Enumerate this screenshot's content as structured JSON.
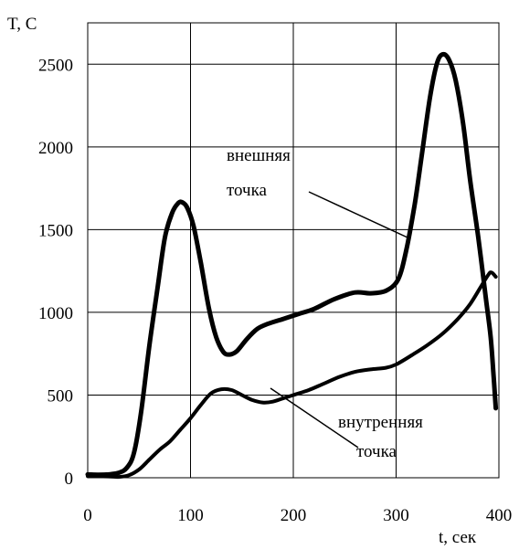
{
  "chart_data": {
    "type": "line",
    "ylabel": "T, C",
    "xlabel": "t, сек",
    "xlim": [
      0,
      400
    ],
    "ylim": [
      0,
      2750
    ],
    "grid": true,
    "x_ticks": [
      0,
      100,
      200,
      300,
      400
    ],
    "y_ticks": [
      0,
      500,
      1000,
      1500,
      2000,
      2500
    ],
    "series": [
      {
        "label_lines": [
          "внешняя",
          "точка"
        ],
        "color": "#000000",
        "points": [
          [
            0,
            20
          ],
          [
            10,
            18
          ],
          [
            20,
            20
          ],
          [
            30,
            30
          ],
          [
            38,
            60
          ],
          [
            45,
            150
          ],
          [
            52,
            400
          ],
          [
            60,
            800
          ],
          [
            68,
            1150
          ],
          [
            75,
            1450
          ],
          [
            82,
            1600
          ],
          [
            88,
            1660
          ],
          [
            92,
            1665
          ],
          [
            97,
            1630
          ],
          [
            103,
            1520
          ],
          [
            110,
            1300
          ],
          [
            118,
            1020
          ],
          [
            125,
            850
          ],
          [
            132,
            760
          ],
          [
            138,
            745
          ],
          [
            145,
            765
          ],
          [
            155,
            840
          ],
          [
            165,
            900
          ],
          [
            175,
            930
          ],
          [
            190,
            960
          ],
          [
            205,
            990
          ],
          [
            220,
            1020
          ],
          [
            240,
            1080
          ],
          [
            260,
            1120
          ],
          [
            275,
            1115
          ],
          [
            290,
            1130
          ],
          [
            302,
            1200
          ],
          [
            310,
            1380
          ],
          [
            318,
            1650
          ],
          [
            325,
            1950
          ],
          [
            333,
            2300
          ],
          [
            340,
            2510
          ],
          [
            346,
            2560
          ],
          [
            352,
            2520
          ],
          [
            358,
            2400
          ],
          [
            365,
            2150
          ],
          [
            372,
            1800
          ],
          [
            380,
            1450
          ],
          [
            387,
            1100
          ],
          [
            392,
            850
          ],
          [
            395,
            600
          ],
          [
            397,
            420
          ]
        ]
      },
      {
        "label_lines": [
          "внутренняя",
          "точка"
        ],
        "color": "#000000",
        "points": [
          [
            0,
            10
          ],
          [
            20,
            8
          ],
          [
            30,
            5
          ],
          [
            40,
            15
          ],
          [
            50,
            50
          ],
          [
            60,
            110
          ],
          [
            70,
            170
          ],
          [
            80,
            220
          ],
          [
            90,
            290
          ],
          [
            100,
            360
          ],
          [
            110,
            440
          ],
          [
            120,
            510
          ],
          [
            130,
            535
          ],
          [
            140,
            530
          ],
          [
            150,
            500
          ],
          [
            160,
            470
          ],
          [
            170,
            455
          ],
          [
            180,
            460
          ],
          [
            190,
            480
          ],
          [
            200,
            500
          ],
          [
            215,
            530
          ],
          [
            230,
            570
          ],
          [
            245,
            610
          ],
          [
            260,
            640
          ],
          [
            275,
            655
          ],
          [
            290,
            665
          ],
          [
            300,
            685
          ],
          [
            315,
            740
          ],
          [
            330,
            800
          ],
          [
            345,
            870
          ],
          [
            360,
            960
          ],
          [
            372,
            1050
          ],
          [
            382,
            1150
          ],
          [
            390,
            1230
          ],
          [
            393,
            1240
          ],
          [
            397,
            1215
          ]
        ]
      }
    ]
  }
}
